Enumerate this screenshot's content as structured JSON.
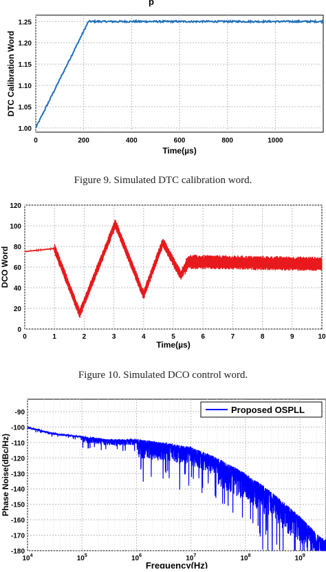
{
  "figures": [
    {
      "caption": "Figure 9.    Simulated DTC calibration word.",
      "top_label": "p"
    },
    {
      "caption": "Figure 10.  Simulated DCO control word."
    }
  ],
  "chart_data": [
    {
      "type": "line",
      "title": "",
      "xlabel": "Time(µs)",
      "ylabel": "DTC Calibration Word",
      "xlim": [
        0,
        1200
      ],
      "ylim": [
        0.99,
        1.265
      ],
      "xticks": [
        "0",
        "200",
        "400",
        "600",
        "800",
        "1000"
      ],
      "yticks": [
        "1.00",
        "1.05",
        "1.10",
        "1.15",
        "1.20",
        "1.25"
      ],
      "grid": true,
      "line_color": "#1f6fb8",
      "series": [
        {
          "x": [
            0,
            220,
            1200
          ],
          "y": [
            1.0,
            1.25,
            1.25
          ]
        }
      ]
    },
    {
      "type": "line",
      "title": "",
      "xlabel": "Time(µs)",
      "ylabel": "DCO Word",
      "xlim": [
        0,
        10
      ],
      "ylim": [
        0,
        120
      ],
      "xticks": [
        "0",
        "1",
        "2",
        "3",
        "4",
        "5",
        "6",
        "7",
        "8",
        "9",
        "10"
      ],
      "yticks": [
        "0",
        "20",
        "40",
        "60",
        "80",
        "100",
        "120"
      ],
      "grid": true,
      "line_color": "#e8191c",
      "series": [
        {
          "x": [
            0,
            1.0,
            1.85,
            3.05,
            4.0,
            4.65,
            5.25,
            5.5,
            10
          ],
          "y": [
            75,
            78,
            15,
            102,
            33,
            84,
            52,
            65,
            63
          ]
        }
      ]
    },
    {
      "type": "line",
      "title": "",
      "xlabel": "Frequency(Hz)",
      "ylabel": "Phase Noise(dBc/Hz)",
      "x_scale": "log",
      "xlim": [
        10000,
        3000000000
      ],
      "ylim": [
        -180,
        -82
      ],
      "xticks": [
        "10^4",
        "10^5",
        "10^6",
        "10^7",
        "10^8",
        "10^9"
      ],
      "yticks": [
        "-90",
        "-100",
        "-110",
        "-120",
        "-130",
        "-140",
        "-150",
        "-160",
        "-170",
        "-180"
      ],
      "grid": true,
      "legend": {
        "position": "top-right",
        "entries": [
          "Proposed OSPLL"
        ]
      },
      "line_color": "#0000ff",
      "series": [
        {
          "name": "Proposed OSPLL",
          "x": [
            10000,
            30000,
            100000,
            300000,
            1000000,
            3000000,
            10000000,
            30000000,
            100000000,
            300000000,
            1000000000,
            2500000000
          ],
          "y": [
            -100,
            -104,
            -106,
            -108,
            -108,
            -110,
            -113,
            -120,
            -130,
            -142,
            -158,
            -172
          ]
        }
      ]
    }
  ]
}
